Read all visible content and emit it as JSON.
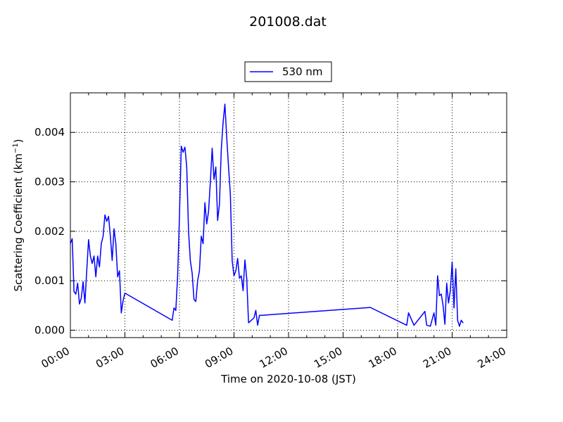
{
  "chart_data": {
    "type": "line",
    "title": "201008.dat",
    "xlabel": "Time on 2020-10-08 (JST)",
    "ylabel": "Scattering Coefficient (km",
    "ylabel_sup": "−1",
    "ylabel_close": ")",
    "xlim_hours": [
      0,
      24
    ],
    "ylim": [
      -0.00015,
      0.0048
    ],
    "x_ticks": [
      "00:00",
      "03:00",
      "06:00",
      "09:00",
      "12:00",
      "15:00",
      "18:00",
      "21:00",
      "24:00"
    ],
    "y_ticks": [
      0.0,
      0.001,
      0.002,
      0.003,
      0.004
    ],
    "y_tick_labels": [
      "0.000",
      "0.001",
      "0.002",
      "0.003",
      "0.004"
    ],
    "grid": true,
    "legend_position": "top-center",
    "series": [
      {
        "name": "530 nm",
        "color": "#0000ff",
        "x": [
          "00:00",
          "00:06",
          "00:12",
          "00:18",
          "00:24",
          "00:30",
          "00:36",
          "00:42",
          "00:48",
          "00:54",
          "01:00",
          "01:06",
          "01:12",
          "01:18",
          "01:24",
          "01:30",
          "01:36",
          "01:42",
          "01:48",
          "01:54",
          "02:00",
          "02:06",
          "02:12",
          "02:18",
          "02:24",
          "02:30",
          "02:36",
          "02:42",
          "02:48",
          "02:54",
          "03:00",
          "05:36",
          "05:42",
          "05:48",
          "05:54",
          "06:00",
          "06:06",
          "06:12",
          "06:18",
          "06:24",
          "06:30",
          "06:36",
          "06:42",
          "06:48",
          "06:54",
          "07:00",
          "07:06",
          "07:12",
          "07:18",
          "07:24",
          "07:30",
          "07:36",
          "07:42",
          "07:48",
          "07:54",
          "08:00",
          "08:06",
          "08:12",
          "08:18",
          "08:24",
          "08:30",
          "08:36",
          "08:42",
          "08:48",
          "08:54",
          "09:00",
          "09:06",
          "09:12",
          "09:18",
          "09:24",
          "09:30",
          "09:36",
          "09:42",
          "09:48",
          "10:06",
          "10:12",
          "10:18",
          "10:24",
          "10:30",
          "16:30",
          "18:30",
          "18:36",
          "18:54",
          "19:30",
          "19:36",
          "19:48",
          "20:00",
          "20:06",
          "20:12",
          "20:18",
          "20:24",
          "20:30",
          "20:36",
          "20:42",
          "20:48",
          "20:54",
          "21:00",
          "21:06",
          "21:12",
          "21:18",
          "21:24",
          "21:30",
          "21:36"
        ],
        "y": [
          0.00175,
          0.00185,
          0.00078,
          0.00073,
          0.00095,
          0.00053,
          0.00065,
          0.00098,
          0.00055,
          0.0012,
          0.00183,
          0.0015,
          0.00135,
          0.0015,
          0.00108,
          0.0015,
          0.00128,
          0.00175,
          0.0019,
          0.00233,
          0.0022,
          0.0023,
          0.0019,
          0.00141,
          0.00205,
          0.00175,
          0.00108,
          0.0012,
          0.00035,
          0.0006,
          0.00075,
          0.0002,
          0.00045,
          0.0004,
          0.0011,
          0.0023,
          0.00372,
          0.0036,
          0.0037,
          0.0033,
          0.002,
          0.0014,
          0.00115,
          0.00062,
          0.00058,
          0.001,
          0.0012,
          0.0019,
          0.00175,
          0.00258,
          0.00215,
          0.0024,
          0.003,
          0.00368,
          0.00305,
          0.0033,
          0.00222,
          0.00255,
          0.00365,
          0.0042,
          0.00457,
          0.0039,
          0.0033,
          0.00275,
          0.0014,
          0.0011,
          0.0012,
          0.00145,
          0.00105,
          0.0011,
          0.0008,
          0.00142,
          0.00105,
          0.00015,
          0.00025,
          0.0004,
          0.0001,
          0.0003,
          0.0003,
          0.00046,
          0.0001,
          0.00035,
          0.0001,
          0.00038,
          0.0001,
          8e-05,
          0.00035,
          0.0001,
          0.0011,
          0.0007,
          0.00073,
          0.0005,
          0.00012,
          0.00095,
          0.00055,
          0.0008,
          0.00138,
          0.00045,
          0.00124,
          0.0002,
          8e-05,
          0.0002,
          0.00015
        ]
      }
    ]
  }
}
